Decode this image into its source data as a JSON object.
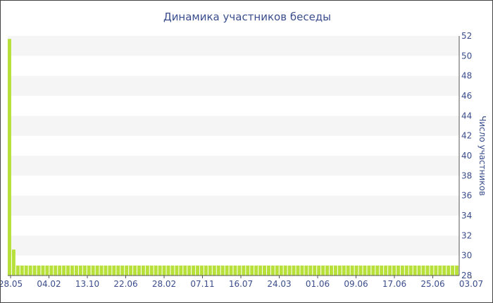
{
  "chart_data": {
    "type": "bar",
    "title": "Динамика участников беседы",
    "xlabel": "",
    "ylabel": "Число участников",
    "ylim": [
      28,
      52
    ],
    "y_axis_position": "right",
    "y_ticks": [
      28,
      30,
      32,
      34,
      36,
      38,
      40,
      42,
      44,
      46,
      48,
      50,
      52
    ],
    "x_tick_labels": [
      "28.05",
      "04.02",
      "13.10",
      "22.06",
      "28.02",
      "07.11",
      "16.07",
      "24.03",
      "01.06",
      "09.06",
      "17.06",
      "25.06",
      "03.07"
    ],
    "bar_color": "#b7e03a",
    "grid": "alternating horizontal bands",
    "values": [
      51.7,
      30.6,
      29,
      29,
      29,
      29,
      29,
      29,
      29,
      29,
      29,
      29,
      29,
      29,
      29,
      29,
      29,
      29,
      29,
      29,
      29,
      29,
      29,
      29,
      29,
      29,
      29,
      29,
      29,
      29,
      29,
      29,
      29,
      29,
      29,
      29,
      29,
      29,
      29,
      29,
      29,
      29,
      29,
      29,
      29,
      29,
      29,
      29,
      29,
      29,
      29,
      29,
      29,
      29,
      29,
      29,
      29,
      29,
      29,
      29,
      29,
      29,
      29,
      29,
      29,
      29,
      29,
      29,
      29,
      29,
      29,
      29,
      29,
      29,
      29,
      29,
      29,
      29,
      29,
      29,
      29,
      29,
      29,
      29,
      29,
      29,
      29,
      29,
      29,
      29,
      29,
      29,
      29,
      29,
      29,
      29,
      29,
      29,
      29,
      29,
      29,
      29,
      29,
      29,
      29,
      29,
      29,
      29
    ]
  }
}
